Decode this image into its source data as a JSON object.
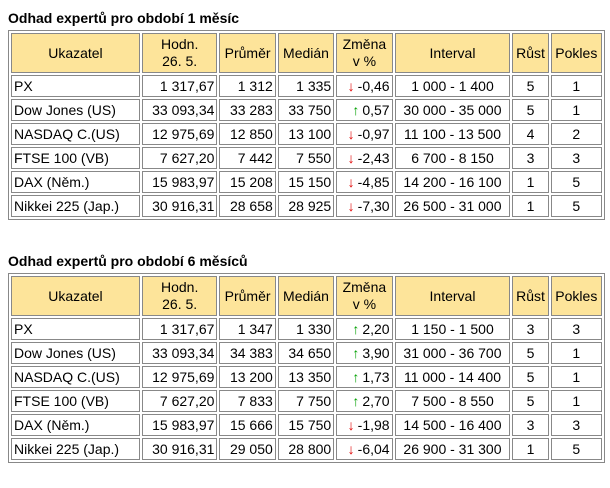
{
  "sections": [
    {
      "title": "Odhad expertů pro období 1 měsíc",
      "header": [
        "Ukazatel",
        "Hodn.\n26. 5.",
        "Průměr",
        "Medián",
        "Změna\nv %",
        "Interval",
        "Růst",
        "Pokles"
      ],
      "rows": [
        [
          "PX",
          "1 317,67",
          "1 312",
          "1 335",
          {
            "arrow": "↓",
            "color": "#e00000",
            "value": "-0,46"
          },
          "1 000 - 1 400",
          "5",
          "1"
        ],
        [
          "Dow Jones (US)",
          "33 093,34",
          "33 283",
          "33 750",
          {
            "arrow": "↑",
            "color": "#00a000",
            "value": "0,57"
          },
          "30 000 - 35 000",
          "5",
          "1"
        ],
        [
          "NASDAQ C.(US)",
          "12 975,69",
          "12 850",
          "13 100",
          {
            "arrow": "↓",
            "color": "#e00000",
            "value": "-0,97"
          },
          "11 100 - 13 500",
          "4",
          "2"
        ],
        [
          "FTSE 100 (VB)",
          "7 627,20",
          "7 442",
          "7 550",
          {
            "arrow": "↓",
            "color": "#e00000",
            "value": "-2,43"
          },
          "6 700 - 8 150",
          "3",
          "3"
        ],
        [
          "DAX (Něm.)",
          "15 983,97",
          "15 208",
          "15 150",
          {
            "arrow": "↓",
            "color": "#e00000",
            "value": "-4,85"
          },
          "14 200 - 16 100",
          "1",
          "5"
        ],
        [
          "Nikkei 225 (Jap.)",
          "30 916,31",
          "28 658",
          "28 925",
          {
            "arrow": "↓",
            "color": "#e00000",
            "value": "-7,30"
          },
          "26 500 - 31 000",
          "1",
          "5"
        ]
      ]
    },
    {
      "title": "Odhad expertů pro období 6 měsíců",
      "header": [
        "Ukazatel",
        "Hodn.\n26. 5.",
        "Průměr",
        "Medián",
        "Změna\nv %",
        "Interval",
        "Růst",
        "Pokles"
      ],
      "rows": [
        [
          "PX",
          "1 317,67",
          "1 347",
          "1 330",
          {
            "arrow": "↑",
            "color": "#00a000",
            "value": "2,20"
          },
          "1 150 - 1 500",
          "3",
          "3"
        ],
        [
          "Dow Jones (US)",
          "33 093,34",
          "34 383",
          "34 650",
          {
            "arrow": "↑",
            "color": "#00a000",
            "value": "3,90"
          },
          "31 000 - 36 700",
          "5",
          "1"
        ],
        [
          "NASDAQ C.(US)",
          "12 975,69",
          "13 200",
          "13 350",
          {
            "arrow": "↑",
            "color": "#00a000",
            "value": "1,73"
          },
          "11 000 - 14 400",
          "5",
          "1"
        ],
        [
          "FTSE 100 (VB)",
          "7 627,20",
          "7 833",
          "7 750",
          {
            "arrow": "↑",
            "color": "#00a000",
            "value": "2,70"
          },
          "7 500 - 8 550",
          "5",
          "1"
        ],
        [
          "DAX (Něm.)",
          "15 983,97",
          "15 666",
          "15 750",
          {
            "arrow": "↓",
            "color": "#e00000",
            "value": "-1,98"
          },
          "14 500 - 16 400",
          "3",
          "3"
        ],
        [
          "Nikkei 225 (Jap.)",
          "30 916,31",
          "29 050",
          "28 800",
          {
            "arrow": "↓",
            "color": "#e00000",
            "value": "-6,04"
          },
          "26 900 - 31 300",
          "1",
          "5"
        ]
      ]
    }
  ]
}
